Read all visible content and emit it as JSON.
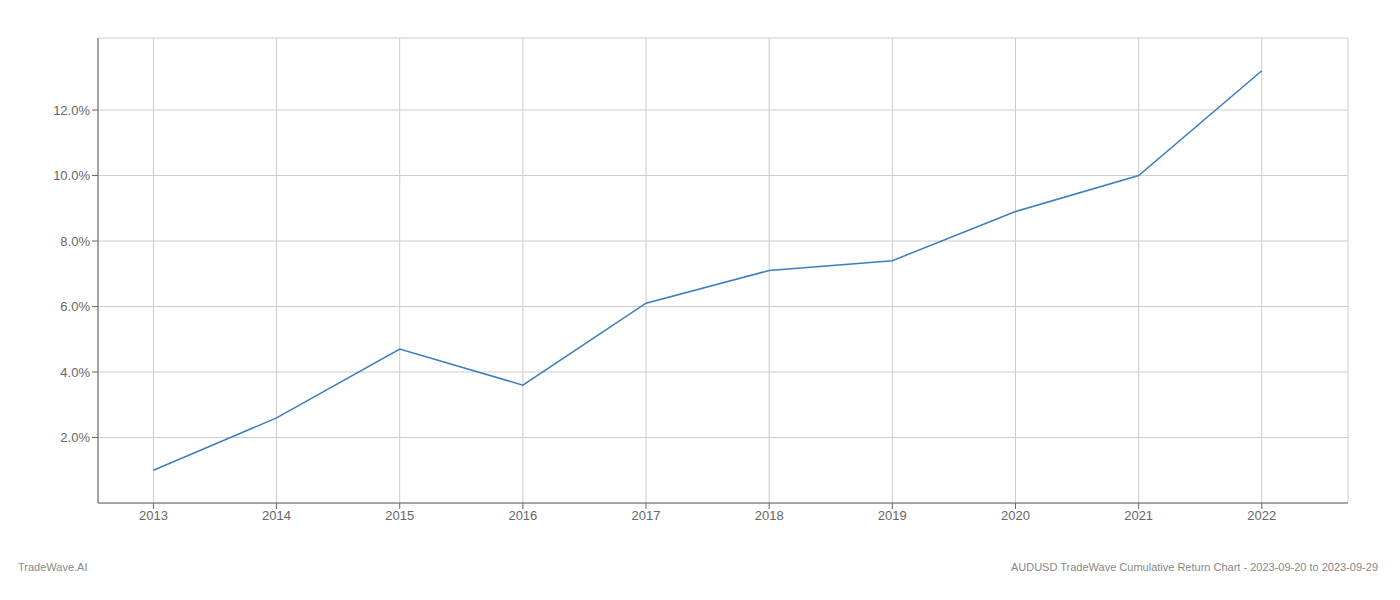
{
  "chart_data": {
    "type": "line",
    "x": [
      2013,
      2014,
      2015,
      2016,
      2017,
      2018,
      2019,
      2020,
      2021,
      2022
    ],
    "values": [
      1.0,
      2.6,
      4.7,
      3.6,
      6.1,
      7.1,
      7.4,
      8.9,
      10.0,
      13.2
    ],
    "color": "#3a7ebf",
    "xlim": [
      2012.55,
      2022.7
    ],
    "xticks": [
      2013,
      2014,
      2015,
      2016,
      2017,
      2018,
      2019,
      2020,
      2021,
      2022
    ],
    "ylim": [
      0.0,
      14.2
    ],
    "yticks": [
      {
        "value": 2.0,
        "label": "2.0%"
      },
      {
        "value": 4.0,
        "label": "4.0%"
      },
      {
        "value": 6.0,
        "label": "6.0%"
      },
      {
        "value": 8.0,
        "label": "8.0%"
      },
      {
        "value": 10.0,
        "label": "10.0%"
      },
      {
        "value": 12.0,
        "label": "12.0%"
      }
    ],
    "grid": true,
    "annotations": [
      "TradeWave.AI",
      "AUDUSD TradeWave Cumulative Return Chart - 2023-09-20 to 2023-09-29"
    ]
  }
}
